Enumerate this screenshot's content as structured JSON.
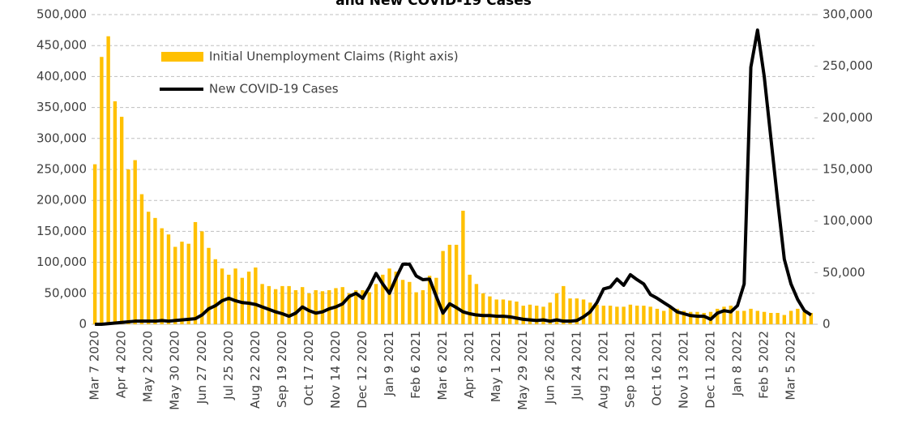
{
  "chart_data": {
    "type": "bar_line",
    "title": "and New COVID-19 Cases",
    "categories": [
      "Mar 7 2020",
      null,
      null,
      null,
      "Apr 4 2020",
      null,
      null,
      null,
      "May 2 2020",
      null,
      null,
      null,
      "May 30 2020",
      null,
      null,
      null,
      "Jun 27 2020",
      null,
      null,
      null,
      "Jul 25 2020",
      null,
      null,
      null,
      "Aug 22 2020",
      null,
      null,
      null,
      "Sep 19 2020",
      null,
      null,
      null,
      "Oct 17 2020",
      null,
      null,
      null,
      "Nov 14 2020",
      null,
      null,
      null,
      "Dec 12 2020",
      null,
      null,
      null,
      "Jan 9 2021",
      null,
      null,
      null,
      "Feb 6 2021",
      null,
      null,
      null,
      "Mar 6 2021",
      null,
      null,
      null,
      "Apr 3 2021",
      null,
      null,
      null,
      "May 1 2021",
      null,
      null,
      null,
      "May 29 2021",
      null,
      null,
      null,
      "Jun 26 2021",
      null,
      null,
      null,
      "Jul 24 2021",
      null,
      null,
      null,
      "Aug 21 2021",
      null,
      null,
      null,
      "Sep 18 2021",
      null,
      null,
      null,
      "Oct 16 2021",
      null,
      null,
      null,
      "Nov 13 2021",
      null,
      null,
      null,
      "Dec 11 2021",
      null,
      null,
      null,
      "Jan 8 2022",
      null,
      null,
      null,
      "Feb 5 2022",
      null,
      null,
      null,
      "Mar 5 2022",
      null,
      null,
      null
    ],
    "series": [
      {
        "name": "Initial Unemployment Claims (Right axis)",
        "type": "bar",
        "axis": "y2",
        "color": "#ffc000",
        "values": [
          155000,
          259000,
          279000,
          216000,
          201000,
          150000,
          159000,
          126000,
          109000,
          103000,
          93000,
          87000,
          75000,
          80000,
          78000,
          99000,
          90000,
          74000,
          63000,
          54000,
          48000,
          54000,
          45000,
          51000,
          55000,
          39000,
          37000,
          34000,
          37000,
          37000,
          33000,
          36000,
          30000,
          33000,
          32000,
          33000,
          35000,
          36000,
          30000,
          33000,
          33000,
          31000,
          39000,
          48000,
          54000,
          51000,
          43000,
          41000,
          31000,
          33000,
          47000,
          45000,
          71000,
          77000,
          77000,
          110000,
          48000,
          39000,
          30000,
          27000,
          24000,
          24000,
          23000,
          22000,
          18000,
          19000,
          18000,
          17000,
          21000,
          30000,
          37000,
          25000,
          25000,
          24000,
          21000,
          19000,
          18000,
          18000,
          17000,
          17000,
          19000,
          18000,
          18000,
          17000,
          15000,
          13000,
          16000,
          15000,
          13000,
          12000,
          12000,
          11000,
          12000,
          15000,
          17000,
          18000,
          13000,
          13000,
          15000,
          13000,
          12000,
          11000,
          11000,
          9000,
          13000,
          15000,
          12000,
          11000
        ]
      },
      {
        "name": "New COVID-19 Cases",
        "type": "line",
        "color": "#000000",
        "values": [
          0,
          0,
          1000,
          2000,
          3000,
          4000,
          5000,
          5000,
          5000,
          5000,
          6000,
          5000,
          6000,
          7000,
          8000,
          9000,
          15000,
          25000,
          30000,
          38000,
          42000,
          38000,
          35000,
          34000,
          32000,
          28000,
          24000,
          20000,
          17000,
          13000,
          18000,
          28000,
          22000,
          18000,
          20000,
          25000,
          28000,
          33000,
          45000,
          50000,
          42000,
          60000,
          82000,
          65000,
          50000,
          75000,
          97000,
          97000,
          78000,
          72000,
          73000,
          45000,
          18000,
          33000,
          27000,
          20000,
          17000,
          15000,
          14000,
          14000,
          13000,
          13000,
          12000,
          10000,
          8000,
          7000,
          6000,
          7000,
          5000,
          7000,
          5000,
          5000,
          6000,
          12000,
          20000,
          35000,
          57000,
          60000,
          73000,
          63000,
          80000,
          72000,
          65000,
          48000,
          42000,
          35000,
          28000,
          20000,
          17000,
          14000,
          13000,
          13000,
          8000,
          18000,
          22000,
          20000,
          30000,
          65000,
          415000,
          475000,
          400000,
          300000,
          200000,
          105000,
          65000,
          40000,
          22000,
          15000
        ]
      }
    ],
    "ylim": [
      0,
      500000
    ],
    "yticks": [
      0,
      {
        "value": 50000,
        "label": "50,000"
      },
      {
        "value": 100000,
        "label": "100,000"
      },
      {
        "value": 150000,
        "label": "150,000"
      },
      {
        "value": 200000,
        "label": "200,000"
      },
      {
        "value": 250000,
        "label": "250,000"
      },
      {
        "value": 300000,
        "label": "300,000"
      },
      {
        "value": 350000,
        "label": "350,000"
      },
      {
        "value": 400000,
        "label": "400,000"
      },
      {
        "value": 450000,
        "label": "450,000"
      },
      {
        "value": 500000,
        "label": "500,000"
      }
    ],
    "y2lim": [
      0,
      300000
    ],
    "y2ticks": [
      0,
      {
        "value": 50000,
        "label": "50,000"
      },
      {
        "value": 100000,
        "label": "100,000"
      },
      {
        "value": 150000,
        "label": "150,000"
      },
      {
        "value": 200000,
        "label": "200,000"
      },
      {
        "value": 250000,
        "label": "250,000"
      },
      {
        "value": 300000,
        "label": "300,000"
      }
    ],
    "grid": true,
    "legend": "top-left"
  }
}
